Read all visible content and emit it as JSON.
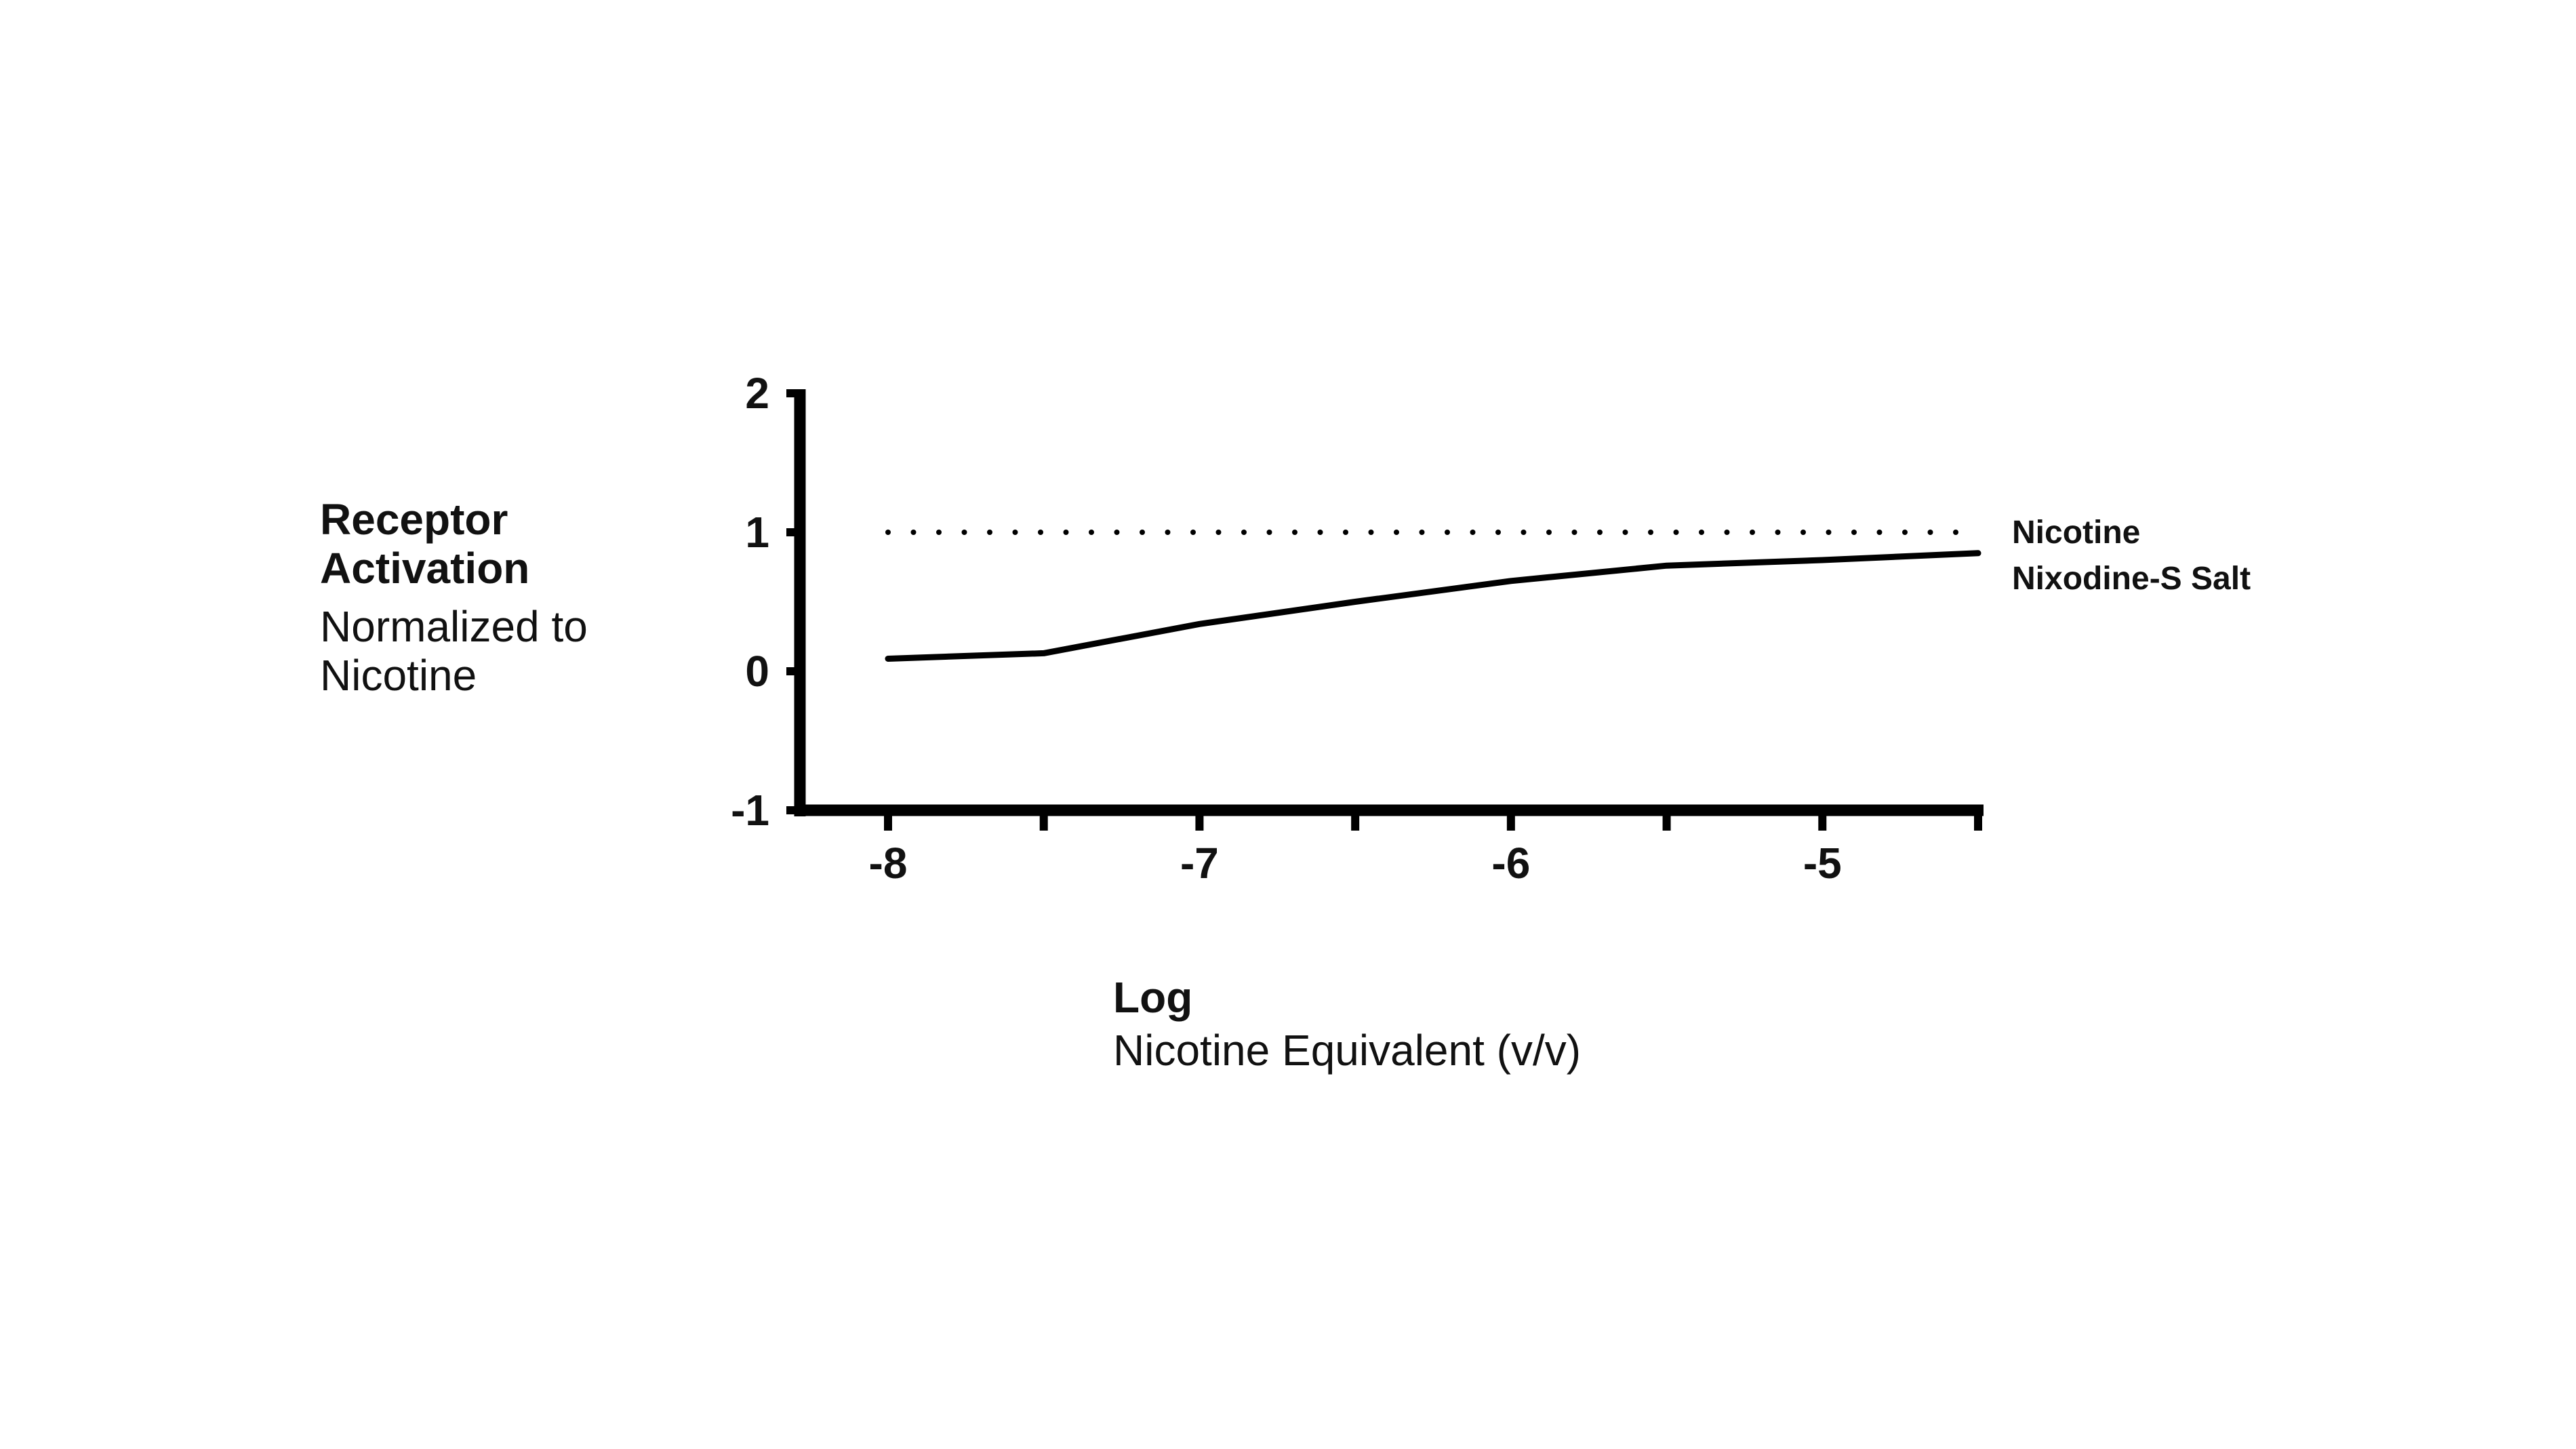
{
  "chart_data": {
    "type": "line",
    "ylabel": "Receptor Activation",
    "ylabel_sub": "Normalized to Nicotine",
    "xlabel": "Log",
    "xlabel_sub": "Nicotine Equivalent (v/v)",
    "xlim": [
      -8.3,
      -4.5
    ],
    "ylim": [
      -1,
      2
    ],
    "x_ticks": [
      -8,
      -7.5,
      -7,
      -6.5,
      -6,
      -5.5,
      -5,
      -4.5
    ],
    "x_tick_labels": [
      "-8",
      "",
      "-7",
      "",
      "-6",
      "",
      "-5",
      ""
    ],
    "y_ticks": [
      -1,
      0,
      1,
      2
    ],
    "y_tick_labels": [
      "-1",
      "0",
      "1",
      "2"
    ],
    "grid": false,
    "legend": "labels at right end of each series",
    "series": [
      {
        "name": "Nicotine",
        "style": "dotted",
        "x": [
          -8,
          -7.5,
          -7,
          -6.5,
          -6,
          -5.5,
          -5,
          -4.5
        ],
        "y": [
          1,
          1,
          1,
          1,
          1,
          1,
          1,
          1
        ]
      },
      {
        "name": "Nixodine-S Salt",
        "style": "solid",
        "x": [
          -8,
          -7.5,
          -7,
          -6.5,
          -6,
          -5.5,
          -5,
          -4.5
        ],
        "y": [
          0.09,
          0.13,
          0.34,
          0.5,
          0.65,
          0.76,
          0.8,
          0.85
        ]
      }
    ]
  }
}
